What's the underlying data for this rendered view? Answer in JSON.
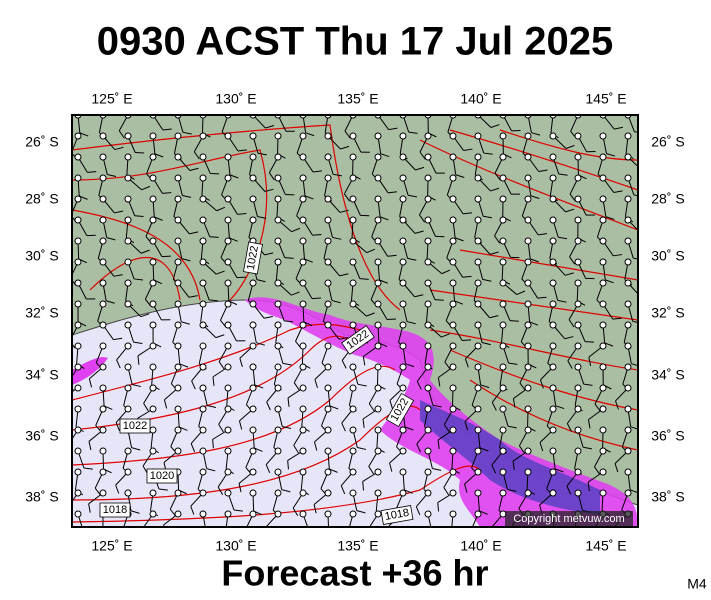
{
  "header": {
    "title": "0930 ACST Thu 17 Jul 2025"
  },
  "map": {
    "lon_labels": [
      "125˚ E",
      "130˚ E",
      "135˚ E",
      "140˚ E",
      "145˚ E"
    ],
    "lat_labels": [
      "26˚ S",
      "28˚ S",
      "30˚ S",
      "32˚ S",
      "34˚ S",
      "36˚ S",
      "38˚ S"
    ],
    "isobar_labels": [
      "1022",
      "1022",
      "1022",
      "1022",
      "1020",
      "1018",
      "1018"
    ],
    "copyright": "Copyright metvuw.com"
  },
  "footer": {
    "forecast": "Forecast +36 hr",
    "model": "M4"
  }
}
